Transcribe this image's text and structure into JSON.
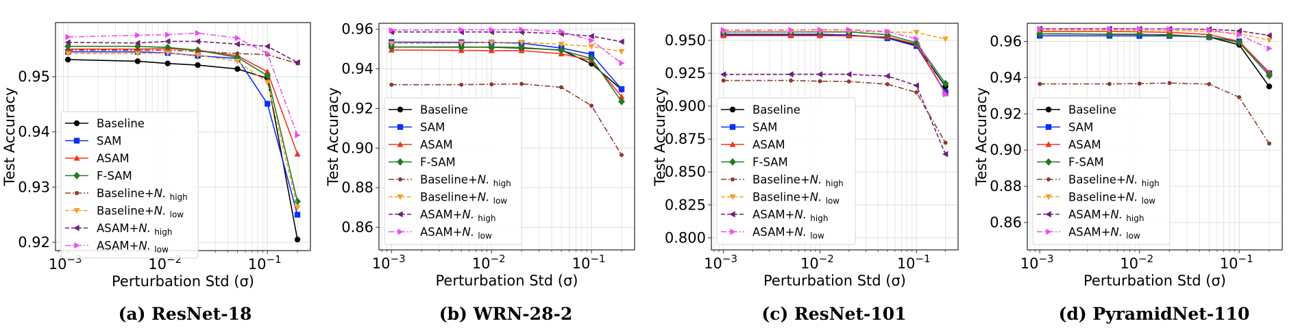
{
  "figure": {
    "captions": [
      "(a) ResNet-18",
      "(b) WRN-28-2",
      "(c) ResNet-101",
      "(d) PyramidNet-110"
    ]
  },
  "series_styles": [
    {
      "name": "Baseline",
      "color": "#000000",
      "marker": "circle",
      "dash": "solid"
    },
    {
      "name": "SAM",
      "color": "#0d2ff5",
      "marker": "square",
      "dash": "solid"
    },
    {
      "name": "ASAM",
      "color": "#f5321e",
      "marker": "triangle-up",
      "dash": "solid"
    },
    {
      "name": "F-SAM",
      "color": "#257a1f",
      "marker": "diamond",
      "dash": "solid"
    },
    {
      "name": "Baseline+N. high",
      "label_main": "Baseline+",
      "label_italic": "N.",
      "label_sub": "high",
      "color": "#8b3a2f",
      "marker": "small-circle",
      "dash": "dashdot"
    },
    {
      "name": "Baseline+N. low",
      "label_main": "Baseline+",
      "label_italic": "N.",
      "label_sub": "low",
      "color": "#f5a02c",
      "marker": "triangle-down",
      "dash": "dashed"
    },
    {
      "name": "ASAM+N. high",
      "label_main": "ASAM+",
      "label_italic": "N.",
      "label_sub": "high",
      "color": "#6e1f78",
      "marker": "triangle-left",
      "dash": "dashed"
    },
    {
      "name": "ASAM+N. low",
      "label_main": "ASAM+",
      "label_italic": "N.",
      "label_sub": "low",
      "color": "#ec4cf0",
      "marker": "triangle-right",
      "dash": "dashdot"
    }
  ],
  "chart_data": [
    {
      "type": "line",
      "title": "(a) ResNet-18",
      "xlabel": "Perturbation Std (σ)",
      "ylabel": "Test Accuracy",
      "xscale": "log",
      "xlim": [
        0.00075,
        0.27
      ],
      "ylim": [
        0.9185,
        0.9598
      ],
      "xticks": [
        {
          "value": 0.001,
          "base": "10",
          "exp": "−3"
        },
        {
          "value": 0.01,
          "base": "10",
          "exp": "−2"
        },
        {
          "value": 0.1,
          "base": "10",
          "exp": "−1"
        }
      ],
      "yticks": [
        0.92,
        0.93,
        0.94,
        0.95
      ],
      "ytick_labels": [
        "0.92",
        "0.93",
        "0.94",
        "0.95"
      ],
      "grid": true,
      "legend": "lower-left",
      "x": [
        0.001,
        0.005,
        0.01,
        0.02,
        0.05,
        0.1,
        0.2
      ],
      "series": [
        {
          "name": "Baseline",
          "values": [
            0.9531,
            0.9528,
            0.9524,
            0.9521,
            0.9514,
            0.9497,
            0.9205
          ]
        },
        {
          "name": "SAM",
          "values": [
            0.9545,
            0.9545,
            0.9543,
            0.9538,
            0.9533,
            0.9451,
            0.925
          ]
        },
        {
          "name": "ASAM",
          "values": [
            0.955,
            0.955,
            0.9551,
            0.9548,
            0.9538,
            0.9509,
            0.936
          ]
        },
        {
          "name": "F-SAM",
          "values": [
            0.9555,
            0.9555,
            0.9553,
            0.9548,
            0.9535,
            0.9502,
            0.9274
          ]
        },
        {
          "name": "Baseline+N. high",
          "values": [
            0.9548,
            0.9548,
            0.9548,
            0.9546,
            0.9542,
            0.954,
            0.9524
          ]
        },
        {
          "name": "Baseline+N. low",
          "values": [
            0.9542,
            0.9542,
            0.9543,
            0.9539,
            0.9528,
            0.949,
            0.9263
          ]
        },
        {
          "name": "ASAM+N. high",
          "values": [
            0.9562,
            0.9561,
            0.9564,
            0.9564,
            0.9559,
            0.9555,
            0.9526
          ]
        },
        {
          "name": "ASAM+N. low",
          "values": [
            0.9572,
            0.9575,
            0.9576,
            0.9579,
            0.957,
            0.9542,
            0.9394
          ]
        }
      ]
    },
    {
      "type": "line",
      "title": "(b) WRN-28-2",
      "xlabel": "Perturbation Std (σ)",
      "ylabel": "Test Accuracy",
      "xscale": "log",
      "xlim": [
        0.00075,
        0.27
      ],
      "ylim": [
        0.8486,
        0.963
      ],
      "xticks": [
        {
          "value": 0.001,
          "base": "10",
          "exp": "−3"
        },
        {
          "value": 0.01,
          "base": "10",
          "exp": "−2"
        },
        {
          "value": 0.1,
          "base": "10",
          "exp": "−1"
        }
      ],
      "yticks": [
        0.86,
        0.88,
        0.9,
        0.92,
        0.94,
        0.96
      ],
      "ytick_labels": [
        "0.86",
        "0.88",
        "0.90",
        "0.92",
        "0.94",
        "0.96"
      ],
      "grid": true,
      "legend": "lower-left",
      "x": [
        0.001,
        0.005,
        0.01,
        0.02,
        0.05,
        0.1,
        0.2
      ],
      "series": [
        {
          "name": "Baseline",
          "values": [
            0.951,
            0.951,
            0.9509,
            0.9505,
            0.9495,
            0.9426,
            0.9295
          ]
        },
        {
          "name": "SAM",
          "values": [
            0.9535,
            0.9534,
            0.9533,
            0.953,
            0.9505,
            0.9473,
            0.9298
          ]
        },
        {
          "name": "ASAM",
          "values": [
            0.9495,
            0.9493,
            0.9492,
            0.9492,
            0.9476,
            0.9443,
            0.926
          ]
        },
        {
          "name": "F-SAM",
          "values": [
            0.951,
            0.9509,
            0.951,
            0.9508,
            0.9493,
            0.9452,
            0.9235
          ]
        },
        {
          "name": "Baseline+N. high",
          "values": [
            0.932,
            0.932,
            0.9322,
            0.9324,
            0.9307,
            0.9214,
            0.8965
          ]
        },
        {
          "name": "Baseline+N. low",
          "values": [
            0.9528,
            0.953,
            0.9533,
            0.9534,
            0.9524,
            0.9513,
            0.9487
          ]
        },
        {
          "name": "ASAM+N. high",
          "values": [
            0.9586,
            0.9586,
            0.9586,
            0.9585,
            0.9577,
            0.9565,
            0.9537
          ]
        },
        {
          "name": "ASAM+N. low",
          "values": [
            0.9595,
            0.9597,
            0.9597,
            0.9598,
            0.9588,
            0.9543,
            0.9429
          ]
        }
      ]
    },
    {
      "type": "line",
      "title": "(c) ResNet-101",
      "xlabel": "Perturbation Std (σ)",
      "ylabel": "Test Accuracy",
      "xscale": "log",
      "xlim": [
        0.00075,
        0.27
      ],
      "ylim": [
        0.7908,
        0.963
      ],
      "xticks": [
        {
          "value": 0.001,
          "base": "10",
          "exp": "−3"
        },
        {
          "value": 0.01,
          "base": "10",
          "exp": "−2"
        },
        {
          "value": 0.1,
          "base": "10",
          "exp": "−1"
        }
      ],
      "yticks": [
        0.8,
        0.825,
        0.85,
        0.875,
        0.9,
        0.925,
        0.95
      ],
      "ytick_labels": [
        "0.800",
        "0.825",
        "0.850",
        "0.875",
        "0.900",
        "0.925",
        "0.950"
      ],
      "grid": true,
      "legend": "lower-left",
      "x": [
        0.001,
        0.005,
        0.01,
        0.02,
        0.05,
        0.1,
        0.2
      ],
      "series": [
        {
          "name": "Baseline",
          "values": [
            0.9543,
            0.9543,
            0.9543,
            0.9538,
            0.9522,
            0.9464,
            0.915
          ]
        },
        {
          "name": "SAM",
          "values": [
            0.9547,
            0.9547,
            0.9547,
            0.9541,
            0.9516,
            0.9457,
            0.9107
          ]
        },
        {
          "name": "ASAM",
          "values": [
            0.9536,
            0.9536,
            0.9536,
            0.9534,
            0.9526,
            0.9471,
            0.9095
          ]
        },
        {
          "name": "F-SAM",
          "values": [
            0.9564,
            0.9564,
            0.9564,
            0.9564,
            0.9543,
            0.9481,
            0.9172
          ]
        },
        {
          "name": "Baseline+N. high",
          "values": [
            0.9195,
            0.9195,
            0.919,
            0.9188,
            0.9167,
            0.9105,
            0.8722
          ]
        },
        {
          "name": "Baseline+N. low",
          "values": [
            0.9567,
            0.9567,
            0.9569,
            0.9569,
            0.9564,
            0.956,
            0.951
          ]
        },
        {
          "name": "ASAM+N. high",
          "values": [
            0.9241,
            0.9242,
            0.9242,
            0.9242,
            0.9229,
            0.9157,
            0.8636
          ]
        },
        {
          "name": "ASAM+N. low",
          "values": [
            0.9578,
            0.9579,
            0.9581,
            0.9581,
            0.9567,
            0.9512,
            0.909
          ]
        }
      ]
    },
    {
      "type": "line",
      "title": "(d) PyramidNet-110",
      "xlabel": "Perturbation Std (σ)",
      "ylabel": "Test Accuracy",
      "xscale": "log",
      "xlim": [
        0.00075,
        0.27
      ],
      "ylim": [
        0.8449,
        0.97
      ],
      "xticks": [
        {
          "value": 0.001,
          "base": "10",
          "exp": "−3"
        },
        {
          "value": 0.01,
          "base": "10",
          "exp": "−2"
        },
        {
          "value": 0.1,
          "base": "10",
          "exp": "−1"
        }
      ],
      "yticks": [
        0.86,
        0.88,
        0.9,
        0.92,
        0.94,
        0.96
      ],
      "ytick_labels": [
        "0.86",
        "0.88",
        "0.90",
        "0.92",
        "0.94",
        "0.96"
      ],
      "grid": true,
      "legend": "lower-left",
      "x": [
        0.001,
        0.005,
        0.01,
        0.02,
        0.05,
        0.1,
        0.2
      ],
      "series": [
        {
          "name": "Baseline",
          "values": [
            0.9642,
            0.964,
            0.9638,
            0.9636,
            0.9624,
            0.9581,
            0.9351
          ]
        },
        {
          "name": "SAM",
          "values": [
            0.9631,
            0.9631,
            0.963,
            0.963,
            0.9624,
            0.96,
            0.9424
          ]
        },
        {
          "name": "ASAM",
          "values": [
            0.9655,
            0.9655,
            0.9653,
            0.965,
            0.9638,
            0.96,
            0.9429
          ]
        },
        {
          "name": "F-SAM",
          "values": [
            0.9642,
            0.964,
            0.964,
            0.9633,
            0.9625,
            0.9594,
            0.9411
          ]
        },
        {
          "name": "Baseline+N. high",
          "values": [
            0.9365,
            0.9365,
            0.9367,
            0.937,
            0.9364,
            0.9292,
            0.9036
          ]
        },
        {
          "name": "Baseline+N. low",
          "values": [
            0.9663,
            0.9663,
            0.9662,
            0.966,
            0.9655,
            0.9644,
            0.9606
          ]
        },
        {
          "name": "ASAM+N. high",
          "values": [
            0.967,
            0.967,
            0.9669,
            0.9669,
            0.9667,
            0.9658,
            0.9633
          ]
        },
        {
          "name": "ASAM+N. low",
          "values": [
            0.967,
            0.9669,
            0.9669,
            0.9668,
            0.9664,
            0.9636,
            0.9561
          ]
        }
      ]
    }
  ]
}
